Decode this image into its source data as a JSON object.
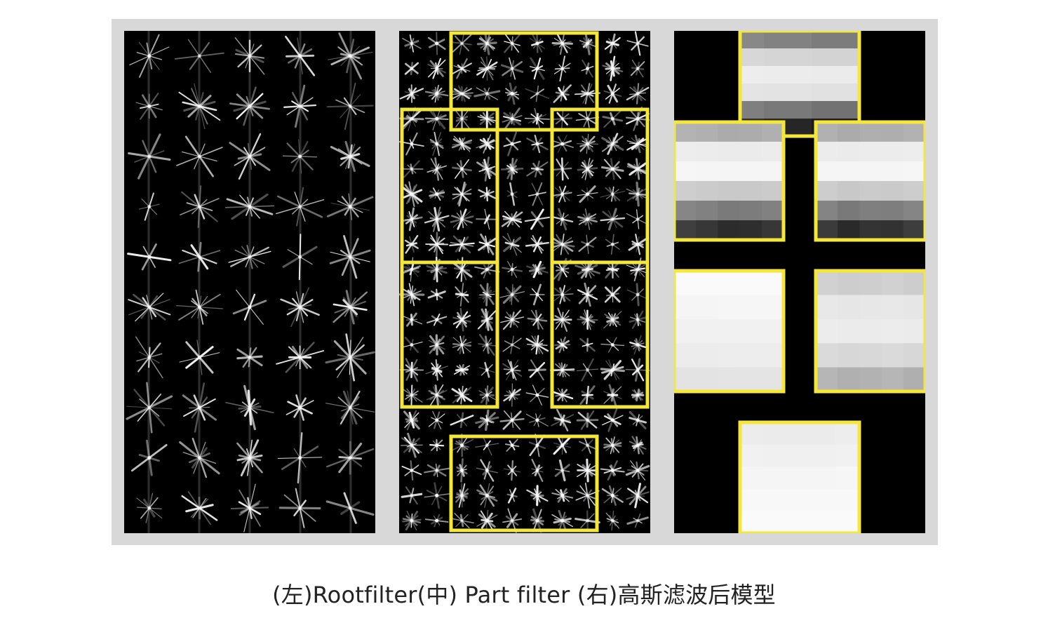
{
  "figure": {
    "caption": "(左)Rootfilter(中) Part filter (右)高斯滤波后模型",
    "panels": [
      {
        "name": "root-filter-hog",
        "content": "HOG visualization of root filter"
      },
      {
        "name": "part-filters-hog",
        "content": "HOG visualization of part filters"
      },
      {
        "name": "gaussian-deformation-model",
        "content": "Gaussian filtered spatial model"
      }
    ],
    "colors": {
      "frame": "#d8d8d8",
      "background": "#000000",
      "highlight": "#f5e63a",
      "glyph": "#ffffff"
    }
  }
}
